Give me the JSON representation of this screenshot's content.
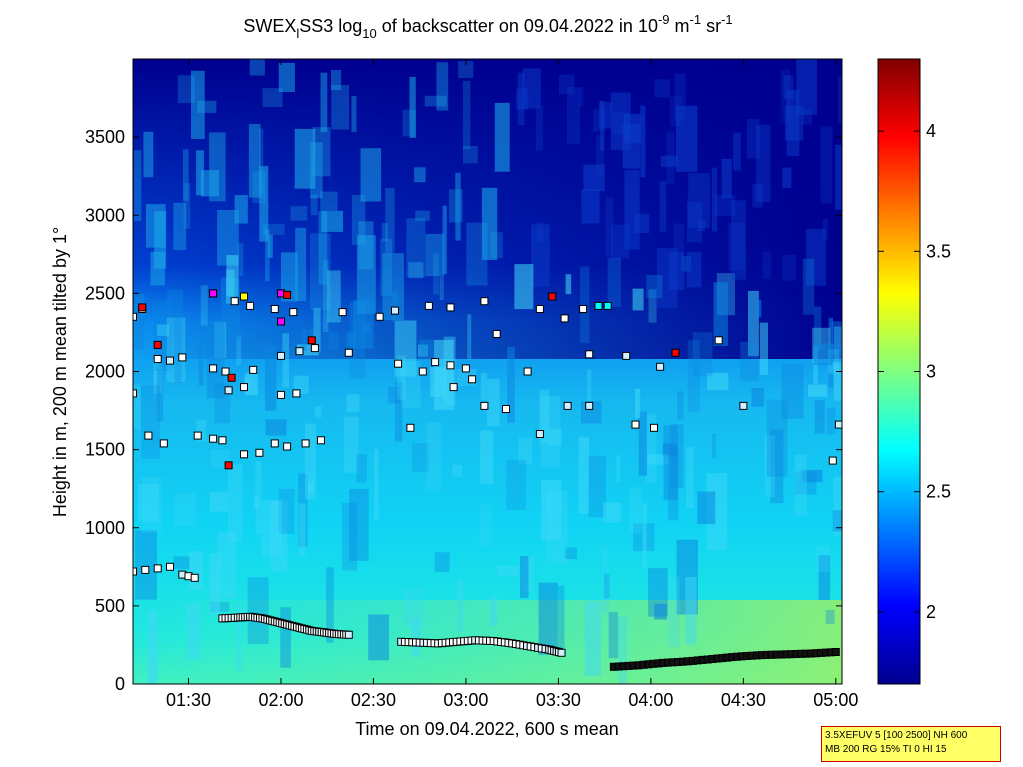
{
  "chart_data": {
    "type": "heatmap",
    "title_parts": {
      "prefix": "SWEX",
      "sub1": "l",
      "mid": "SS3 log",
      "sub2": "10",
      "middle": " of backscatter on 09.04.2022 in 10",
      "sup1": "-9",
      "unit1": " m",
      "sup2": "-1",
      "unit2": " sr",
      "sup3": "-1"
    },
    "xlabel": "Time on 09.04.2022, 600 s mean",
    "ylabel": "Height in m, 200 m mean tilted by 1°",
    "x_ticks": [
      "01:30",
      "02:00",
      "02:30",
      "03:00",
      "03:30",
      "04:00",
      "04:30",
      "05:00"
    ],
    "x_tick_minutes": [
      90,
      120,
      150,
      180,
      210,
      240,
      270,
      300
    ],
    "xlim_minutes": [
      72,
      302
    ],
    "y_ticks": [
      0,
      500,
      1000,
      1500,
      2000,
      2500,
      3000,
      3500
    ],
    "ylim": [
      0,
      4000
    ],
    "colorbar": {
      "ticks": [
        "2",
        "2.5",
        "3",
        "3.5",
        "4"
      ],
      "tick_values": [
        2,
        2.5,
        3,
        3.5,
        4
      ],
      "range": [
        1.7,
        4.3
      ]
    },
    "colors": {
      "low": "#00008f",
      "high": "#800000"
    },
    "cloud_layers": [
      {
        "name": "cloud-base-1",
        "points": [
          [
            72,
            720
          ],
          [
            76,
            730
          ],
          [
            80,
            740
          ],
          [
            84,
            750
          ]
        ]
      },
      {
        "name": "cloud-base-2",
        "points": [
          [
            88,
            700
          ],
          [
            90,
            690
          ],
          [
            92,
            680
          ]
        ]
      },
      {
        "name": "mixing-layer",
        "points": [
          [
            101,
            420
          ],
          [
            106,
            425
          ],
          [
            110,
            430
          ],
          [
            114,
            420
          ],
          [
            118,
            400
          ],
          [
            122,
            380
          ],
          [
            126,
            360
          ],
          [
            130,
            340
          ],
          [
            134,
            330
          ],
          [
            138,
            320
          ],
          [
            142,
            315
          ]
        ]
      },
      {
        "name": "mixing-layer-2",
        "points": [
          [
            159,
            270
          ],
          [
            165,
            265
          ],
          [
            171,
            260
          ],
          [
            177,
            270
          ],
          [
            183,
            280
          ],
          [
            189,
            275
          ],
          [
            195,
            260
          ],
          [
            201,
            240
          ],
          [
            207,
            220
          ],
          [
            211,
            200
          ]
        ]
      },
      {
        "name": "mixing-layer-3",
        "points": [
          [
            228,
            110
          ],
          [
            236,
            120
          ],
          [
            244,
            135
          ],
          [
            252,
            145
          ],
          [
            260,
            160
          ],
          [
            268,
            175
          ],
          [
            276,
            185
          ],
          [
            284,
            190
          ],
          [
            292,
            195
          ],
          [
            300,
            205
          ]
        ]
      },
      {
        "name": "layer-1500",
        "points": [
          [
            77,
            1590
          ],
          [
            82,
            1540
          ],
          [
            93,
            1590
          ],
          [
            98,
            1570
          ],
          [
            101,
            1560
          ],
          [
            108,
            1470
          ],
          [
            113,
            1480
          ],
          [
            118,
            1540
          ],
          [
            122,
            1520
          ],
          [
            128,
            1540
          ],
          [
            133,
            1560
          ],
          [
            162,
            1640
          ],
          [
            204,
            1600
          ],
          [
            220,
            1780
          ],
          [
            235,
            1660
          ],
          [
            241,
            1640
          ],
          [
            299,
            1430
          ],
          [
            301,
            1660
          ]
        ]
      },
      {
        "name": "layer-1800",
        "points": [
          [
            72,
            1860
          ],
          [
            103,
            1880
          ],
          [
            108,
            1900
          ],
          [
            120,
            1850
          ],
          [
            125,
            1860
          ],
          [
            176,
            1900
          ],
          [
            182,
            1950
          ],
          [
            186,
            1780
          ],
          [
            193,
            1760
          ],
          [
            213,
            1780
          ],
          [
            270,
            1780
          ]
        ]
      },
      {
        "name": "layer-2000",
        "points": [
          [
            80,
            2080
          ],
          [
            84,
            2070
          ],
          [
            88,
            2090
          ],
          [
            98,
            2020
          ],
          [
            102,
            2000
          ],
          [
            111,
            2010
          ],
          [
            120,
            2100
          ],
          [
            126,
            2130
          ],
          [
            131,
            2150
          ],
          [
            142,
            2120
          ],
          [
            158,
            2050
          ],
          [
            166,
            2000
          ],
          [
            170,
            2060
          ],
          [
            175,
            2040
          ],
          [
            180,
            2020
          ],
          [
            190,
            2240
          ],
          [
            200,
            2000
          ],
          [
            220,
            2110
          ],
          [
            232,
            2100
          ],
          [
            243,
            2030
          ],
          [
            262,
            2200
          ]
        ]
      },
      {
        "name": "layer-2400",
        "points": [
          [
            72,
            2350
          ],
          [
            75,
            2400
          ],
          [
            98,
            2500
          ],
          [
            105,
            2450
          ],
          [
            110,
            2420
          ],
          [
            118,
            2400
          ],
          [
            124,
            2380
          ],
          [
            140,
            2380
          ],
          [
            152,
            2350
          ],
          [
            157,
            2390
          ],
          [
            168,
            2420
          ],
          [
            175,
            2410
          ],
          [
            186,
            2450
          ],
          [
            204,
            2400
          ],
          [
            212,
            2340
          ],
          [
            218,
            2400
          ]
        ]
      }
    ]
  },
  "legend_info": {
    "line1": "3.5XEFUV 5 [100 2500] NH 600",
    "line2": "MB 200 RG 15% TI 0 HI 15"
  }
}
